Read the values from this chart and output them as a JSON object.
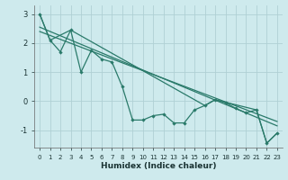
{
  "xlabel": "Humidex (Indice chaleur)",
  "bg_color": "#ceeaed",
  "grid_color": "#b0d0d4",
  "line_color": "#2a7a6a",
  "xlim": [
    -0.5,
    23.5
  ],
  "ylim": [
    -1.6,
    3.3
  ],
  "yticks": [
    -1,
    0,
    1,
    2,
    3
  ],
  "xticks": [
    0,
    1,
    2,
    3,
    4,
    5,
    6,
    7,
    8,
    9,
    10,
    11,
    12,
    13,
    14,
    15,
    16,
    17,
    18,
    19,
    20,
    21,
    22,
    23
  ],
  "main_x": [
    0,
    1,
    2,
    3,
    4,
    5,
    6,
    7,
    8,
    9,
    10,
    11,
    12,
    13,
    14,
    15,
    16,
    17,
    18,
    19,
    20,
    21,
    22,
    23
  ],
  "main_y": [
    3.0,
    2.1,
    1.7,
    2.45,
    1.0,
    1.75,
    1.45,
    1.35,
    0.5,
    -0.65,
    -0.65,
    -0.5,
    -0.45,
    -0.75,
    -0.75,
    -0.3,
    -0.15,
    0.05,
    -0.05,
    -0.25,
    -0.4,
    -0.3,
    -1.45,
    -1.1
  ],
  "trend1_x": [
    0,
    23
  ],
  "trend1_y": [
    2.55,
    -0.85
  ],
  "trend2_x": [
    0,
    23
  ],
  "trend2_y": [
    2.4,
    -0.7
  ],
  "line3_x": [
    0,
    1,
    3,
    16,
    17,
    21,
    22,
    23
  ],
  "line3_y": [
    3.0,
    2.1,
    2.45,
    -0.15,
    0.05,
    -0.3,
    -1.45,
    -1.1
  ]
}
